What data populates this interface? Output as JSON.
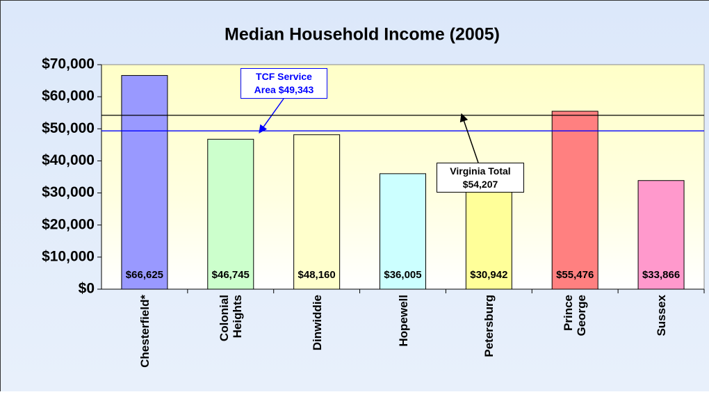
{
  "chart_data": {
    "type": "bar",
    "title": "Median Household Income (2005)",
    "categories": [
      "Chesterfield*",
      "Colonial\nHeights",
      "Dinwiddie",
      "Hopewell",
      "Petersburg",
      "Prince\nGeorge",
      "Sussex"
    ],
    "values": [
      66625,
      46745,
      48160,
      36005,
      30942,
      55476,
      33866
    ],
    "value_labels": [
      "$66,625",
      "$46,745",
      "$48,160",
      "$36,005",
      "$30,942",
      "$55,476",
      "$33,866"
    ],
    "colors": [
      "#9999ff",
      "#ccffcc",
      "#ffffcc",
      "#ccffff",
      "#ffff99",
      "#ff8080",
      "#ff99cc"
    ],
    "ylim": [
      0,
      70000
    ],
    "yticks": [
      {
        "value": 0,
        "label": "$0"
      },
      {
        "value": 10000,
        "label": "$10,000"
      },
      {
        "value": 20000,
        "label": "$20,000"
      },
      {
        "value": 30000,
        "label": "$30,000"
      },
      {
        "value": 40000,
        "label": "$40,000"
      },
      {
        "value": 50000,
        "label": "$50,000"
      },
      {
        "value": 60000,
        "label": "$60,000"
      },
      {
        "value": 70000,
        "label": "$70,000"
      }
    ],
    "reference_lines": [
      {
        "label": "TCF Service\nArea $49,343",
        "value": 49343,
        "color": "#0000ff"
      },
      {
        "label": "Virginia Total\n$54,207",
        "value": 54207,
        "color": "#000000"
      }
    ]
  }
}
